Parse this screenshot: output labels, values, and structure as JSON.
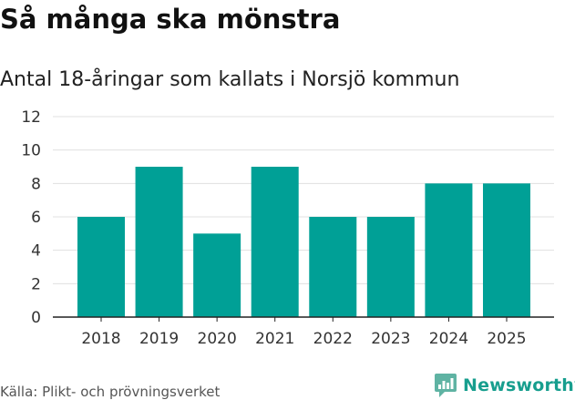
{
  "header": {
    "title": "Så många ska mönstra",
    "subtitle": "Antal 18-åringar som kallats i Norsjö kommun"
  },
  "footer": {
    "source": "Källa: Plikt- och prövningsverket",
    "brand": "Newsworthy"
  },
  "colors": {
    "bar": "#00a096",
    "grid": "#e0e0e0",
    "axis": "#222222",
    "brand": "#179e8e"
  },
  "icons": {
    "brand": "newsworthy-logo-icon"
  },
  "chart_data": {
    "type": "bar",
    "title": "Så många ska mönstra",
    "subtitle": "Antal 18-åringar som kallats i Norsjö kommun",
    "categories": [
      "2018",
      "2019",
      "2020",
      "2021",
      "2022",
      "2023",
      "2024",
      "2025"
    ],
    "values": [
      6,
      9,
      5,
      9,
      6,
      6,
      8,
      8
    ],
    "xlabel": "",
    "ylabel": "",
    "ylim": [
      0,
      12
    ],
    "yticks": [
      "0",
      "2",
      "4",
      "6",
      "8",
      "10",
      "12"
    ],
    "grid": true,
    "legend": "none"
  }
}
